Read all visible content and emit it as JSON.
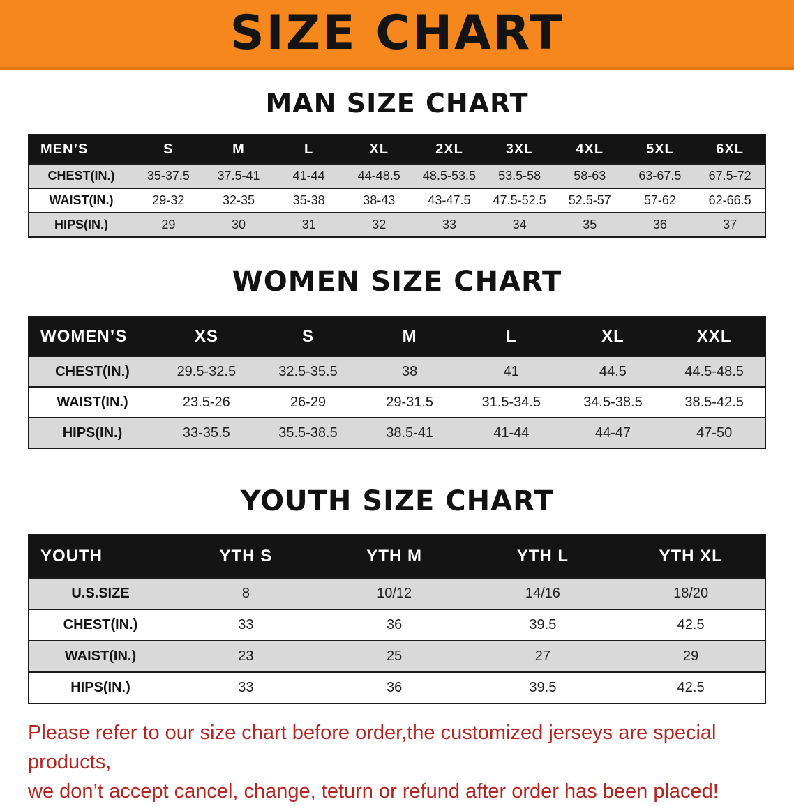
{
  "banner": {
    "title": "SIZE CHART",
    "bg_color": "#f6871d"
  },
  "sections": [
    {
      "heading": "MAN SIZE CHART",
      "corner": "MEN’S",
      "columns": [
        "S",
        "M",
        "L",
        "XL",
        "2XL",
        "3XL",
        "4XL",
        "5XL",
        "6XL"
      ],
      "rows": [
        {
          "label": "CHEST(IN.)",
          "values": [
            "35-37.5",
            "37.5-41",
            "41-44",
            "44-48.5",
            "48.5-53.5",
            "53.5-58",
            "58-63",
            "63-67.5",
            "67.5-72"
          ]
        },
        {
          "label": "WAIST(IN.)",
          "values": [
            "29-32",
            "32-35",
            "35-38",
            "38-43",
            "43-47.5",
            "47.5-52.5",
            "52.5-57",
            "57-62",
            "62-66.5"
          ]
        },
        {
          "label": "HIPS(IN.)",
          "values": [
            "29",
            "30",
            "31",
            "32",
            "33",
            "34",
            "35",
            "36",
            "37"
          ]
        }
      ]
    },
    {
      "heading": "WOMEN SIZE CHART",
      "corner": "WOMEN’S",
      "columns": [
        "XS",
        "S",
        "M",
        "L",
        "XL",
        "XXL"
      ],
      "rows": [
        {
          "label": "CHEST(IN.)",
          "values": [
            "29.5-32.5",
            "32.5-35.5",
            "38",
            "41",
            "44.5",
            "44.5-48.5"
          ]
        },
        {
          "label": "WAIST(IN.)",
          "values": [
            "23.5-26",
            "26-29",
            "29-31.5",
            "31.5-34.5",
            "34.5-38.5",
            "38.5-42.5"
          ]
        },
        {
          "label": "HIPS(IN.)",
          "values": [
            "33-35.5",
            "35.5-38.5",
            "38.5-41",
            "41-44",
            "44-47",
            "47-50"
          ]
        }
      ]
    },
    {
      "heading": "YOUTH SIZE CHART",
      "corner": "YOUTH",
      "columns": [
        "YTH S",
        "YTH M",
        "YTH L",
        "YTH XL"
      ],
      "rows": [
        {
          "label": "U.S.SIZE",
          "values": [
            "8",
            "10/12",
            "14/16",
            "18/20"
          ]
        },
        {
          "label": "CHEST(IN.)",
          "values": [
            "33",
            "36",
            "39.5",
            "42.5"
          ]
        },
        {
          "label": "WAIST(IN.)",
          "values": [
            "23",
            "25",
            "27",
            "29"
          ]
        },
        {
          "label": "HIPS(IN.)",
          "values": [
            "33",
            "36",
            "39.5",
            "42.5"
          ]
        }
      ]
    }
  ],
  "footer": {
    "line1": "Please refer to our size chart before order,the customized jerseys are special products,",
    "line2": "we don’t accept cancel, change, teturn or refund after order has been placed!",
    "text_color": "#b42521"
  }
}
